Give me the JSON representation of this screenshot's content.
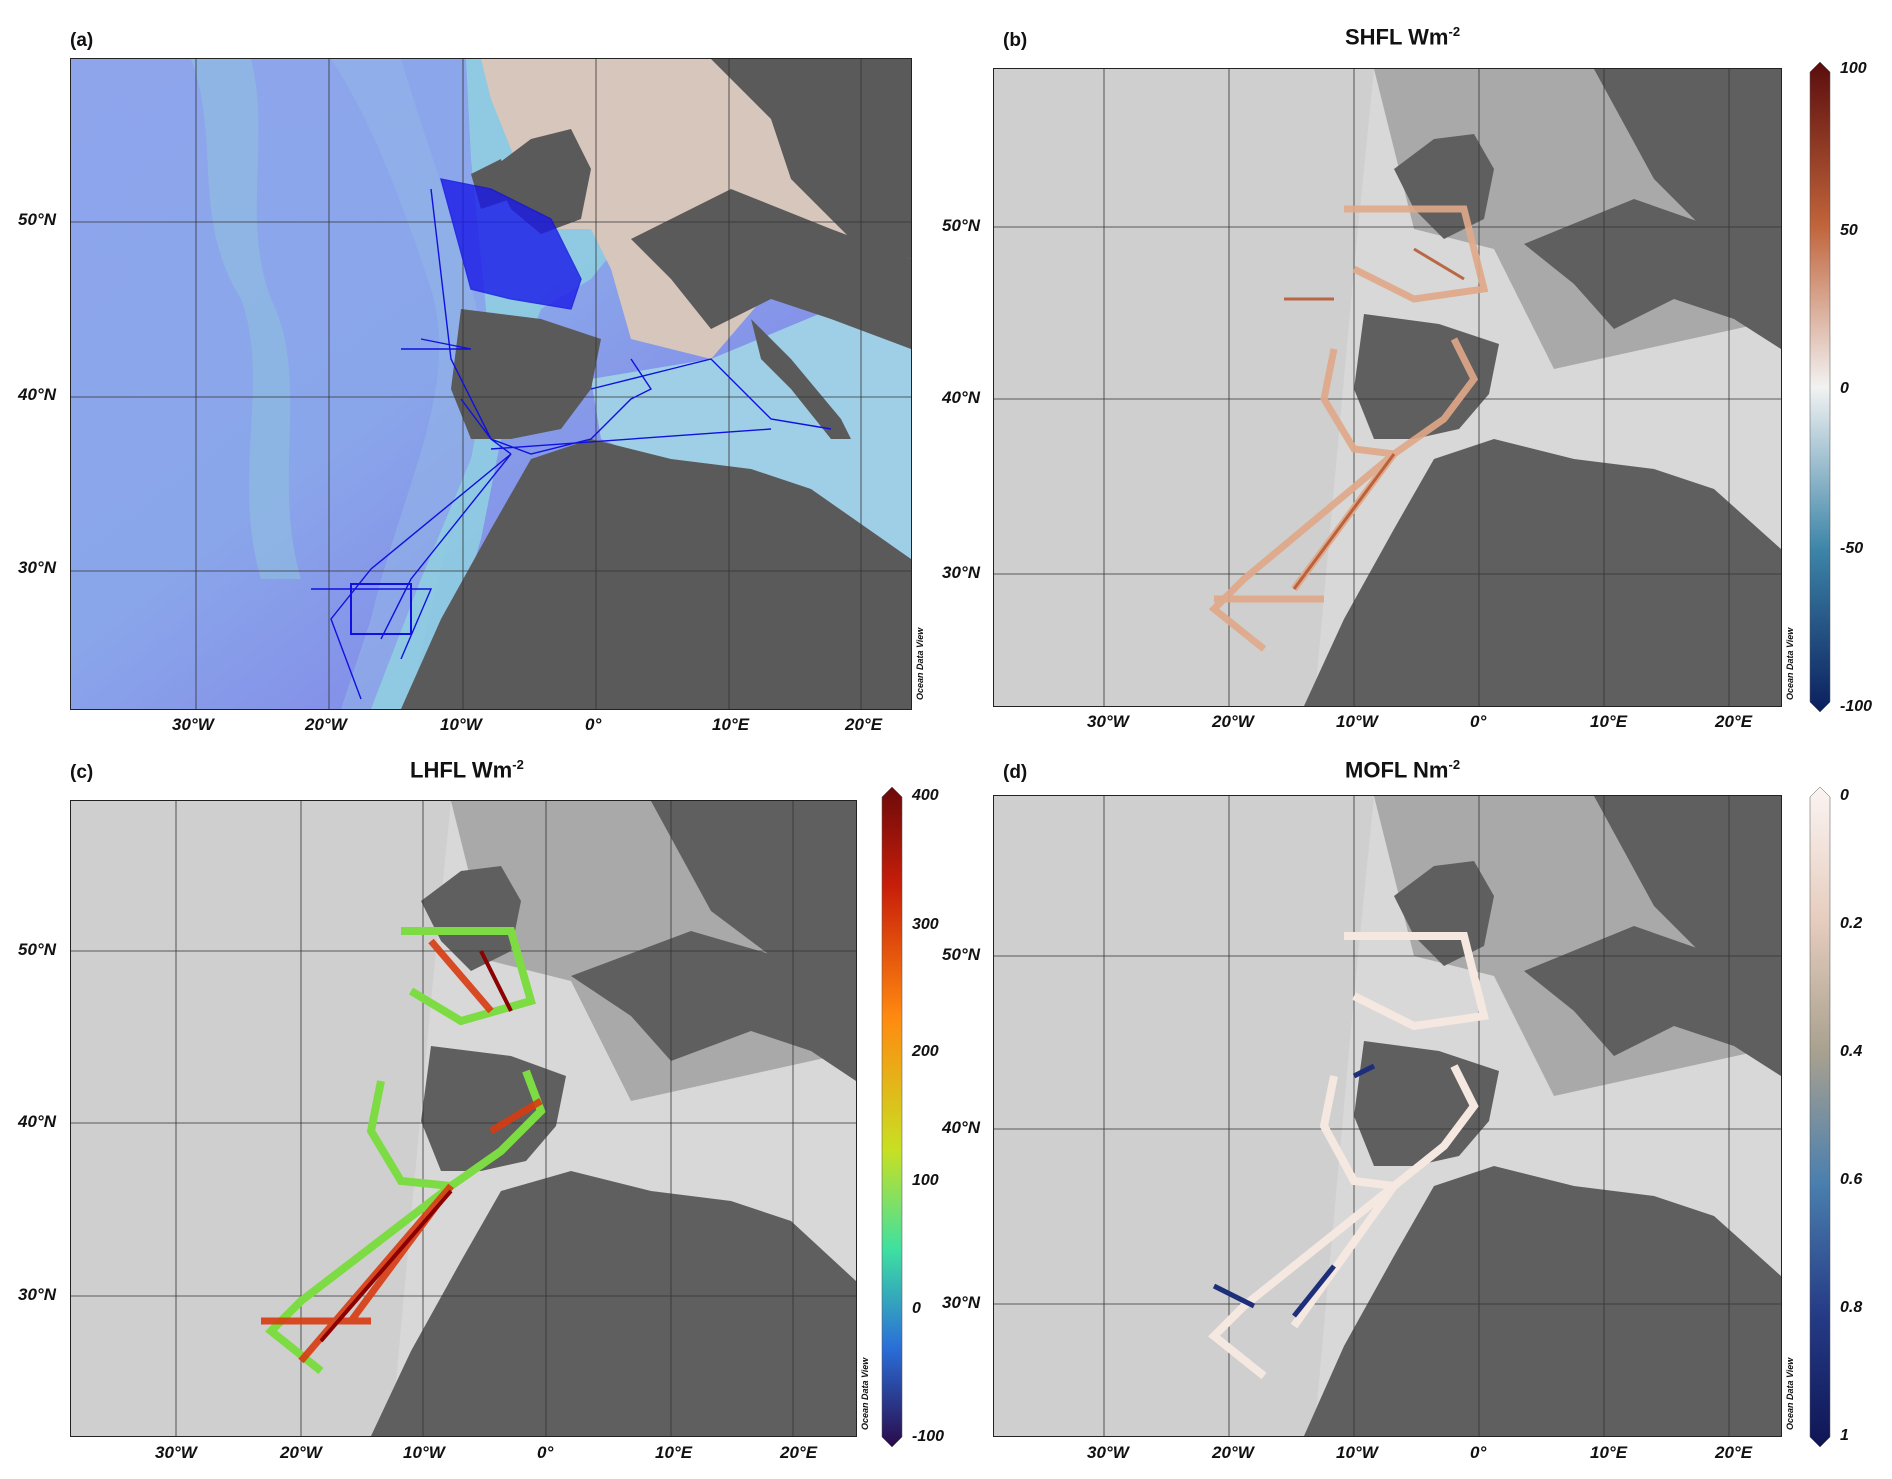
{
  "panels": [
    {
      "id": "a",
      "label": "(a)",
      "title": "",
      "title_unit_exp": "",
      "lat_ticks": [
        "50°N",
        "40°N",
        "30°N"
      ],
      "lon_ticks": [
        "30°W",
        "20°W",
        "10°W",
        "0°",
        "10°E",
        "20°E"
      ],
      "watermark": "Ocean Data View",
      "style": "bathymetry-color",
      "track_color": "#1010e0"
    },
    {
      "id": "b",
      "label": "(b)",
      "title": "SHFL Wm",
      "title_unit_exp": "-2",
      "lat_ticks": [
        "50°N",
        "40°N",
        "30°N"
      ],
      "lon_ticks": [
        "30°W",
        "20°W",
        "10°W",
        "0°",
        "10°E",
        "20°E"
      ],
      "watermark": "Ocean Data View",
      "style": "grayscale",
      "colorbar": {
        "ticks": [
          "100",
          "50",
          "0",
          "-50",
          "-100"
        ],
        "scheme": "diverging-red-blue",
        "range": [
          -100,
          100
        ]
      }
    },
    {
      "id": "c",
      "label": "(c)",
      "title": "LHFL Wm",
      "title_unit_exp": "-2",
      "lat_ticks": [
        "50°N",
        "40°N",
        "30°N"
      ],
      "lon_ticks": [
        "30°W",
        "20°W",
        "10°W",
        "0°",
        "10°E",
        "20°E"
      ],
      "watermark": "Ocean Data View",
      "style": "grayscale",
      "colorbar": {
        "ticks": [
          "400",
          "300",
          "200",
          "100",
          "0",
          "-100"
        ],
        "scheme": "jet",
        "range": [
          -100,
          400
        ]
      }
    },
    {
      "id": "d",
      "label": "(d)",
      "title": "MOFL Nm",
      "title_unit_exp": "-2",
      "lat_ticks": [
        "50°N",
        "40°N",
        "30°N"
      ],
      "lon_ticks": [
        "30°W",
        "20°W",
        "10°W",
        "0°",
        "10°E",
        "20°E"
      ],
      "watermark": "Ocean Data View",
      "style": "grayscale",
      "colorbar": {
        "ticks": [
          "0",
          "0.2",
          "0.4",
          "0.6",
          "0.8",
          "1"
        ],
        "scheme": "white-brown-blue",
        "range": [
          0,
          1
        ]
      }
    }
  ],
  "colors": {
    "land_color_map": "#cfc2b6",
    "land_dark": "#5a5a5a",
    "ocean_deep": "#7b84e8",
    "ocean_shallow": "#8fc6e0",
    "gray_ocean": "#dcdcdc"
  }
}
